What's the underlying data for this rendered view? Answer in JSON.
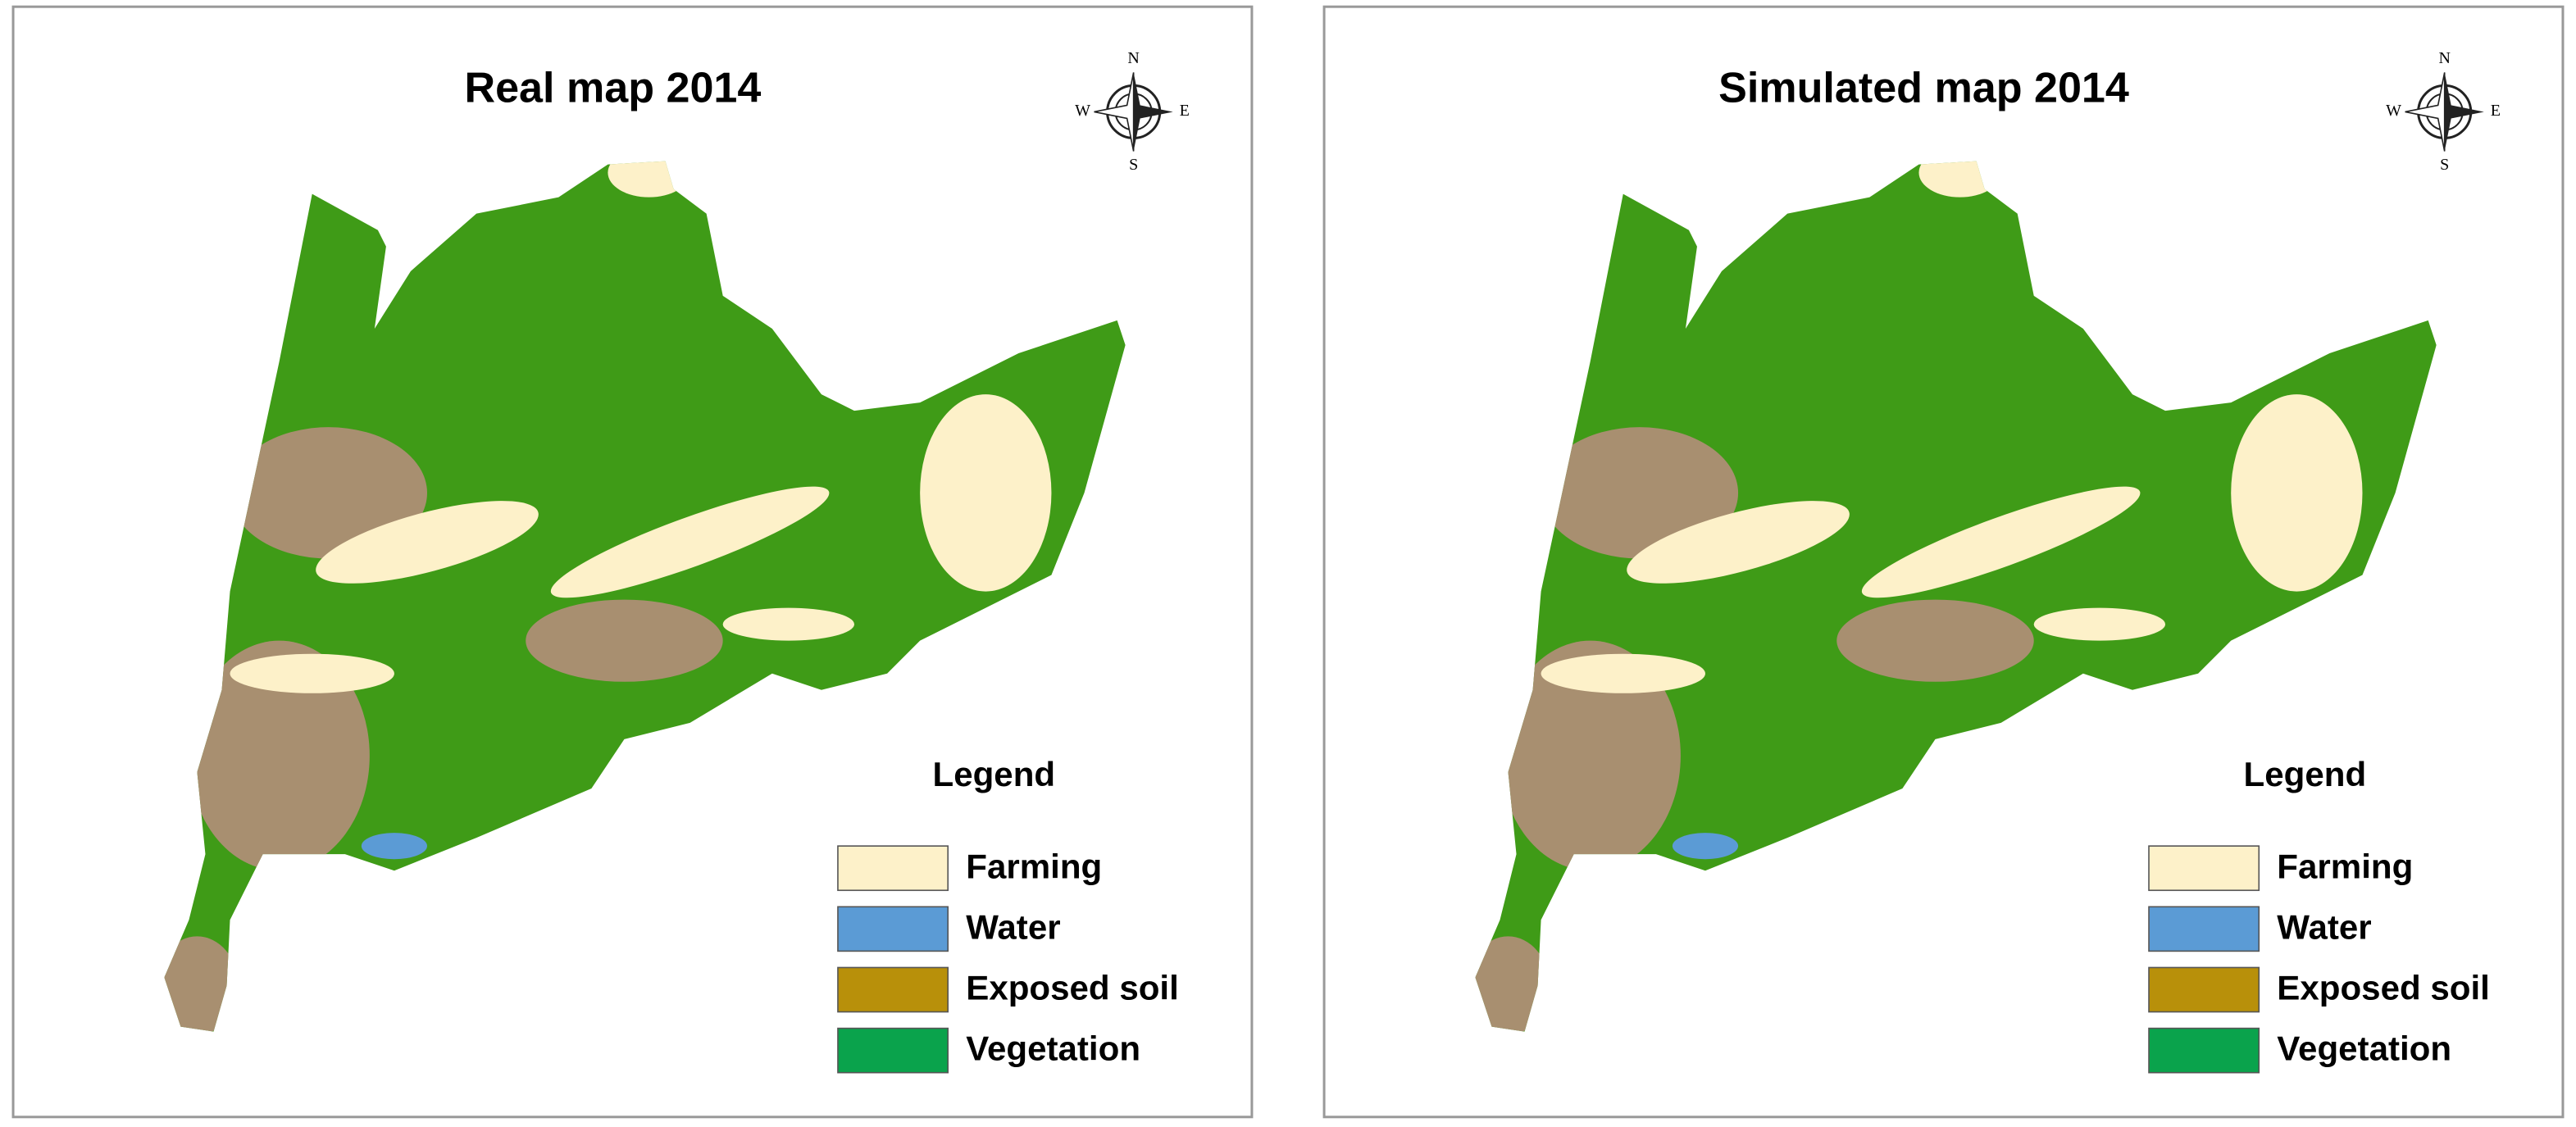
{
  "panels": [
    {
      "title": "Real map 2014",
      "compass": {
        "n": "N",
        "e": "E",
        "s": "S",
        "w": "W"
      },
      "legend": {
        "title": "Legend",
        "items": [
          {
            "label": "Farming",
            "color": "#fdf1c9"
          },
          {
            "label": "Water",
            "color": "#5b9bd5"
          },
          {
            "label": "Exposed soil",
            "color": "#b8900a"
          },
          {
            "label": "Vegetation",
            "color": "#0aa34c"
          }
        ]
      }
    },
    {
      "title": "Simulated map 2014",
      "compass": {
        "n": "N",
        "e": "E",
        "s": "S",
        "w": "W"
      },
      "legend": {
        "title": "Legend",
        "items": [
          {
            "label": "Farming",
            "color": "#fdf1c9"
          },
          {
            "label": "Water",
            "color": "#5b9bd5"
          },
          {
            "label": "Exposed soil",
            "color": "#b8900a"
          },
          {
            "label": "Vegetation",
            "color": "#0aa34c"
          }
        ]
      }
    }
  ]
}
